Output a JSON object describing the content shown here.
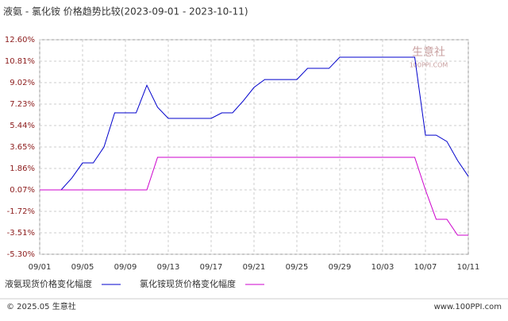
{
  "chart_data": {
    "type": "line",
    "title": "液氨 - 氯化铵 价格趋势比较(2023-09-01 - 2023-10-11)",
    "categories": [
      "09/01",
      null,
      null,
      null,
      "09/05",
      null,
      null,
      null,
      "09/09",
      null,
      null,
      null,
      "09/13",
      null,
      null,
      null,
      "09/17",
      null,
      null,
      null,
      "09/21",
      null,
      null,
      null,
      "09/25",
      null,
      null,
      null,
      "09/29",
      null,
      null,
      null,
      "10/03",
      null,
      null,
      null,
      "10/07",
      null,
      null,
      null,
      "10/11"
    ],
    "series": [
      {
        "name": "液氨现货价格变化幅度",
        "color": "#0000cc",
        "values": [
          0.07,
          0.07,
          0.07,
          1.06,
          2.32,
          2.32,
          3.65,
          6.5,
          6.5,
          6.5,
          8.8,
          6.97,
          6.04,
          6.04,
          6.04,
          6.04,
          6.04,
          6.5,
          6.5,
          7.5,
          8.62,
          9.28,
          9.28,
          9.28,
          9.28,
          10.21,
          10.21,
          10.21,
          11.14,
          11.14,
          11.14,
          11.14,
          11.14,
          11.14,
          11.14,
          11.14,
          4.64,
          4.64,
          4.11,
          2.52,
          1.2
        ]
      },
      {
        "name": "氯化铵现货价格变化幅度",
        "color": "#cc00cc",
        "values": [
          0.07,
          0.07,
          0.07,
          0.07,
          0.07,
          0.07,
          0.07,
          0.07,
          0.07,
          0.07,
          0.07,
          2.79,
          2.79,
          2.79,
          2.79,
          2.79,
          2.79,
          2.79,
          2.79,
          2.79,
          2.79,
          2.79,
          2.79,
          2.79,
          2.79,
          2.79,
          2.79,
          2.79,
          2.79,
          2.79,
          2.79,
          2.79,
          2.79,
          2.79,
          2.79,
          2.79,
          0.07,
          -2.38,
          -2.38,
          -3.71,
          -3.71
        ]
      }
    ],
    "ylim": [
      -5.3,
      12.6
    ],
    "yticks": [
      {
        "value": 12.6,
        "label": "12.60%"
      },
      {
        "value": 10.81,
        "label": "10.81%"
      },
      {
        "value": 9.02,
        "label": "9.02%"
      },
      {
        "value": 7.23,
        "label": "7.23%"
      },
      {
        "value": 5.44,
        "label": "5.44%"
      },
      {
        "value": 3.65,
        "label": "3.65%"
      },
      {
        "value": 1.86,
        "label": "1.86%"
      },
      {
        "value": 0.07,
        "label": "0.07%"
      },
      {
        "value": -1.72,
        "label": "-1.72%"
      },
      {
        "value": -3.51,
        "label": "-3.51%"
      },
      {
        "value": -5.3,
        "label": "-5.30%"
      }
    ],
    "grid": true,
    "watermark": {
      "name": "生意社",
      "site": "100PPI.COM"
    },
    "footer": {
      "left": "© 2025.05 生意社",
      "right": "www.100PPI.com"
    }
  }
}
